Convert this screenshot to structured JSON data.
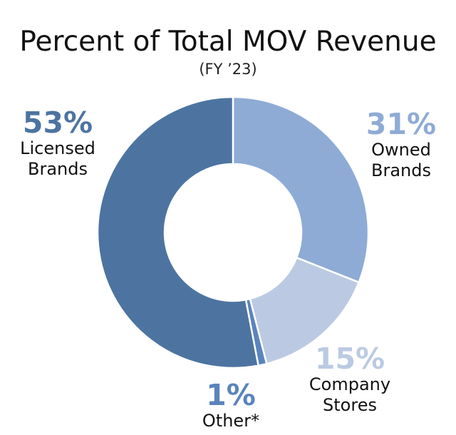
{
  "chart_data": {
    "type": "pie",
    "title": "Percent of Total MOV Revenue",
    "subtitle": "(FY ’23)",
    "slices": [
      {
        "label_lines": [
          "Owned",
          "Brands"
        ],
        "value": 31,
        "value_label": "31%",
        "color": "#8eabd5"
      },
      {
        "label_lines": [
          "Company",
          "Stores"
        ],
        "value": 15,
        "value_label": "15%",
        "color": "#bbcae2"
      },
      {
        "label_lines": [
          "Other*"
        ],
        "value": 1,
        "value_label": "1%",
        "color": "#5b84bd"
      },
      {
        "label_lines": [
          "Licensed",
          "Brands"
        ],
        "value": 53,
        "value_label": "53%",
        "color": "#4d74a1"
      }
    ]
  }
}
